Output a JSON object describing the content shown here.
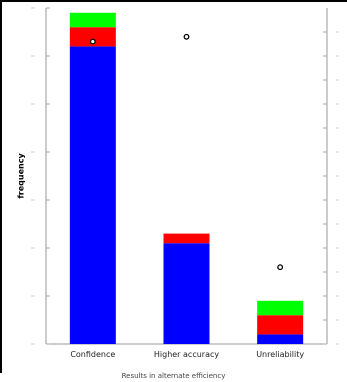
{
  "chart_data": {
    "type": "bar",
    "stacked": true,
    "categories": [
      "Confidence",
      "Higher accuracy",
      "Unreliability"
    ],
    "series": [
      {
        "color": "#0000ff",
        "values": [
          6.2,
          2.1,
          0.2
        ]
      },
      {
        "color": "#ff0000",
        "values": [
          0.4,
          0.2,
          0.4
        ]
      },
      {
        "color": "#00ff00",
        "values": [
          0.3,
          0.0,
          0.3
        ]
      }
    ],
    "markers": {
      "type": "scatter",
      "values": [
        6.3,
        6.4,
        1.6
      ],
      "color": "#000000"
    },
    "xlabel": "Results in alternate efficiency",
    "ylabel": "frequency",
    "ylim": [
      0,
      7
    ],
    "left_axis_tick_values": [
      0,
      1,
      2,
      3,
      4,
      5,
      6,
      7
    ],
    "right_axis_tick_values": [
      0,
      0.5,
      1,
      1.5,
      2,
      2.5,
      3,
      3.5,
      4,
      4.5,
      5,
      5.5,
      6,
      6.5
    ],
    "grid": false,
    "legend": "none"
  }
}
